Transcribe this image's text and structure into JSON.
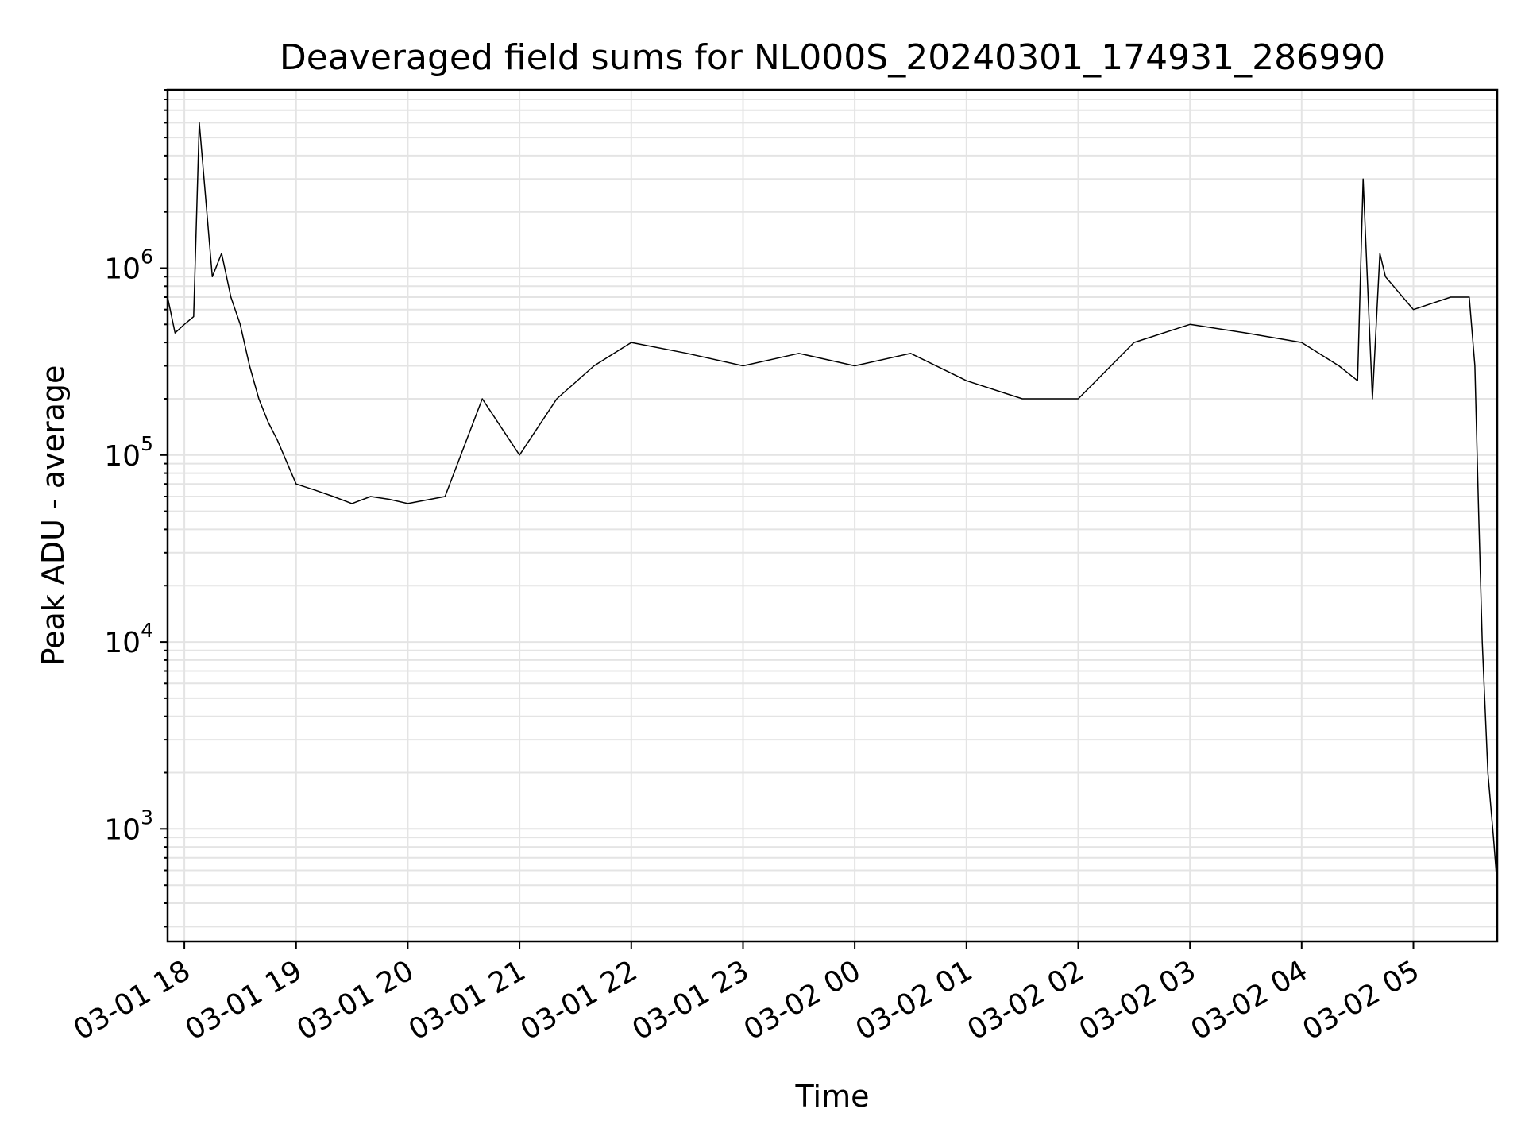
{
  "chart_data": {
    "type": "line",
    "title": "Deaveraged field sums for NL000S_20240301_174931_286990",
    "xlabel": "Time",
    "ylabel": "Peak ADU - average",
    "y_scale": "log",
    "grid": true,
    "x_range": [
      "2024-03-01 17:51",
      "2024-03-02 05:45"
    ],
    "ylim": [
      250,
      9000000
    ],
    "x_tick_labels": [
      "03-01 18",
      "03-01 19",
      "03-01 20",
      "03-01 21",
      "03-01 22",
      "03-01 23",
      "03-02 00",
      "03-02 01",
      "03-02 02",
      "03-02 03",
      "03-02 04",
      "03-02 05"
    ],
    "y_tick_labels": [
      {
        "base": "10",
        "exp": "3"
      },
      {
        "base": "10",
        "exp": "4"
      },
      {
        "base": "10",
        "exp": "5"
      },
      {
        "base": "10",
        "exp": "6"
      }
    ],
    "series": [
      {
        "color": "#000000",
        "x": [
          "2024-03-01 17:51",
          "2024-03-01 17:55",
          "2024-03-01 18:00",
          "2024-03-01 18:05",
          "2024-03-01 18:08",
          "2024-03-01 18:15",
          "2024-03-01 18:20",
          "2024-03-01 18:25",
          "2024-03-01 18:30",
          "2024-03-01 18:35",
          "2024-03-01 18:40",
          "2024-03-01 18:45",
          "2024-03-01 18:50",
          "2024-03-01 19:00",
          "2024-03-01 19:10",
          "2024-03-01 19:20",
          "2024-03-01 19:30",
          "2024-03-01 19:40",
          "2024-03-01 19:50",
          "2024-03-01 20:00",
          "2024-03-01 20:20",
          "2024-03-01 20:40",
          "2024-03-01 21:00",
          "2024-03-01 21:20",
          "2024-03-01 21:40",
          "2024-03-01 22:00",
          "2024-03-01 22:30",
          "2024-03-01 23:00",
          "2024-03-01 23:30",
          "2024-03-02 00:00",
          "2024-03-02 00:30",
          "2024-03-02 01:00",
          "2024-03-02 01:30",
          "2024-03-02 02:00",
          "2024-03-02 02:30",
          "2024-03-02 03:00",
          "2024-03-02 03:30",
          "2024-03-02 04:00",
          "2024-03-02 04:20",
          "2024-03-02 04:30",
          "2024-03-02 04:33",
          "2024-03-02 04:38",
          "2024-03-02 04:42",
          "2024-03-02 04:45",
          "2024-03-02 05:00",
          "2024-03-02 05:20",
          "2024-03-02 05:30",
          "2024-03-02 05:33",
          "2024-03-02 05:35",
          "2024-03-02 05:37",
          "2024-03-02 05:40",
          "2024-03-02 05:43",
          "2024-03-02 05:45"
        ],
        "y": [
          700000,
          450000,
          500000,
          550000,
          6000000,
          900000,
          1200000,
          700000,
          500000,
          300000,
          200000,
          150000,
          120000,
          70000,
          65000,
          60000,
          55000,
          60000,
          58000,
          55000,
          60000,
          200000,
          100000,
          200000,
          300000,
          400000,
          350000,
          300000,
          350000,
          300000,
          350000,
          250000,
          200000,
          200000,
          400000,
          500000,
          450000,
          400000,
          300000,
          250000,
          3000000,
          200000,
          1200000,
          900000,
          600000,
          700000,
          700000,
          300000,
          50000,
          10000,
          2000,
          900,
          500
        ]
      }
    ]
  }
}
